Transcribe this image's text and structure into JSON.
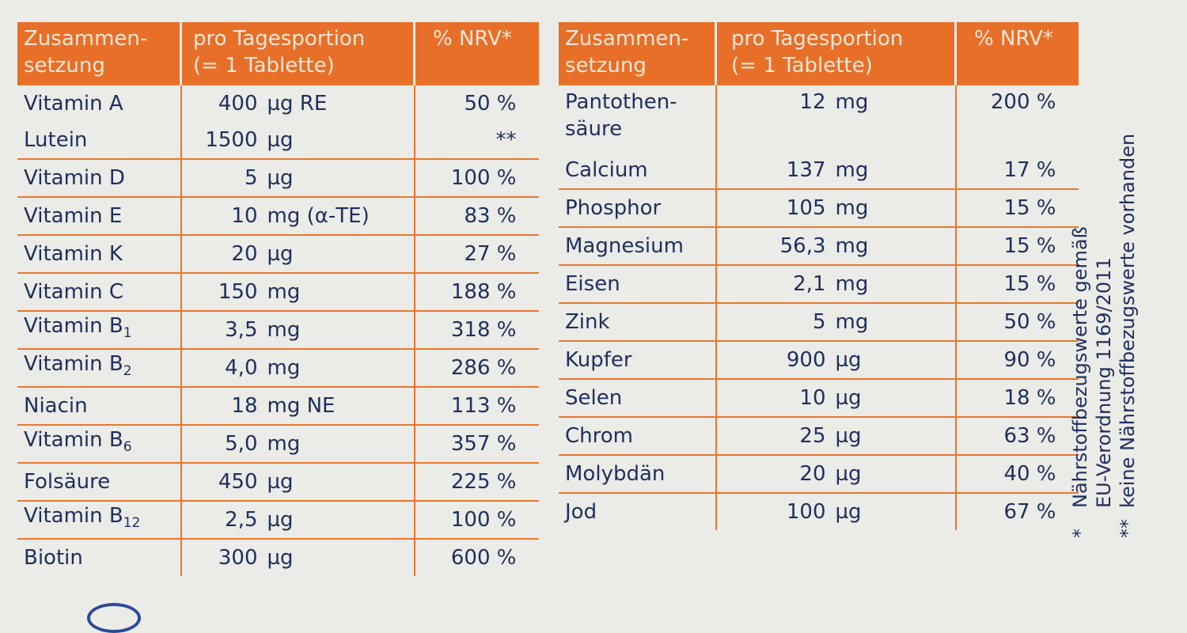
{
  "headers": {
    "composition": "Zusammen-\nsetzung",
    "per_portion": "pro Tagesportion\n(= 1 Tablette)",
    "nrv": "% NRV*"
  },
  "left_rows": [
    {
      "name": "Vitamin A",
      "sub": "",
      "amount": "400",
      "unit": "µg RE",
      "nrv": "50 %"
    },
    {
      "name": "Lutein",
      "sub": "",
      "amount": "1500",
      "unit": "µg",
      "nrv": "**"
    },
    {
      "name": "Vitamin D",
      "sub": "",
      "amount": "5",
      "unit": "µg",
      "nrv": "100 %"
    },
    {
      "name": "Vitamin E",
      "sub": "",
      "amount": "10",
      "unit": "mg (α-TE)",
      "nrv": "83 %"
    },
    {
      "name": "Vitamin K",
      "sub": "",
      "amount": "20",
      "unit": "µg",
      "nrv": "27 %"
    },
    {
      "name": "Vitamin C",
      "sub": "",
      "amount": "150",
      "unit": "mg",
      "nrv": "188 %"
    },
    {
      "name": "Vitamin B",
      "sub": "1",
      "amount": "3,5",
      "unit": "mg",
      "nrv": "318 %"
    },
    {
      "name": "Vitamin B",
      "sub": "2",
      "amount": "4,0",
      "unit": "mg",
      "nrv": "286 %"
    },
    {
      "name": "Niacin",
      "sub": "",
      "amount": "18",
      "unit": "mg NE",
      "nrv": "113 %"
    },
    {
      "name": "Vitamin B",
      "sub": "6",
      "amount": "5,0",
      "unit": "mg",
      "nrv": "357 %"
    },
    {
      "name": "Folsäure",
      "sub": "",
      "amount": "450",
      "unit": "µg",
      "nrv": "225 %"
    },
    {
      "name": "Vitamin B",
      "sub": "12",
      "amount": "2,5",
      "unit": "µg",
      "nrv": "100 %"
    },
    {
      "name": "Biotin",
      "sub": "",
      "amount": "300",
      "unit": "µg",
      "nrv": "600 %"
    }
  ],
  "right_rows": [
    {
      "name": "Pantothen-\nsäure",
      "amount": "12",
      "unit": "mg",
      "nrv": "200 %"
    },
    {
      "name": "Calcium",
      "amount": "137",
      "unit": "mg",
      "nrv": "17 %"
    },
    {
      "name": "Phosphor",
      "amount": "105",
      "unit": "mg",
      "nrv": "15 %"
    },
    {
      "name": "Magnesium",
      "amount": "56,3",
      "unit": "mg",
      "nrv": "15 %"
    },
    {
      "name": "Eisen",
      "amount": "2,1",
      "unit": "mg",
      "nrv": "15 %"
    },
    {
      "name": "Zink",
      "amount": "5",
      "unit": "mg",
      "nrv": "50 %"
    },
    {
      "name": "Kupfer",
      "amount": "900",
      "unit": "µg",
      "nrv": "90 %"
    },
    {
      "name": "Selen",
      "amount": "10",
      "unit": "µg",
      "nrv": "18 %"
    },
    {
      "name": "Chrom",
      "amount": "25",
      "unit": "µg",
      "nrv": "63 %"
    },
    {
      "name": "Molybdän",
      "amount": "20",
      "unit": "µg",
      "nrv": "40 %"
    },
    {
      "name": "Jod",
      "amount": "100",
      "unit": "µg",
      "nrv": "67 %"
    }
  ],
  "footnotes": [
    {
      "mark": "*",
      "text": "Nährstoffbezugswerte gemäß\nEU-Verordnung 1169/2011"
    },
    {
      "mark": "**",
      "text": "keine Nährstoffbezugswerte vorhanden"
    }
  ],
  "colors": {
    "accent": "#e86f28",
    "text": "#1e2f5e",
    "background": "#ebebe8"
  }
}
